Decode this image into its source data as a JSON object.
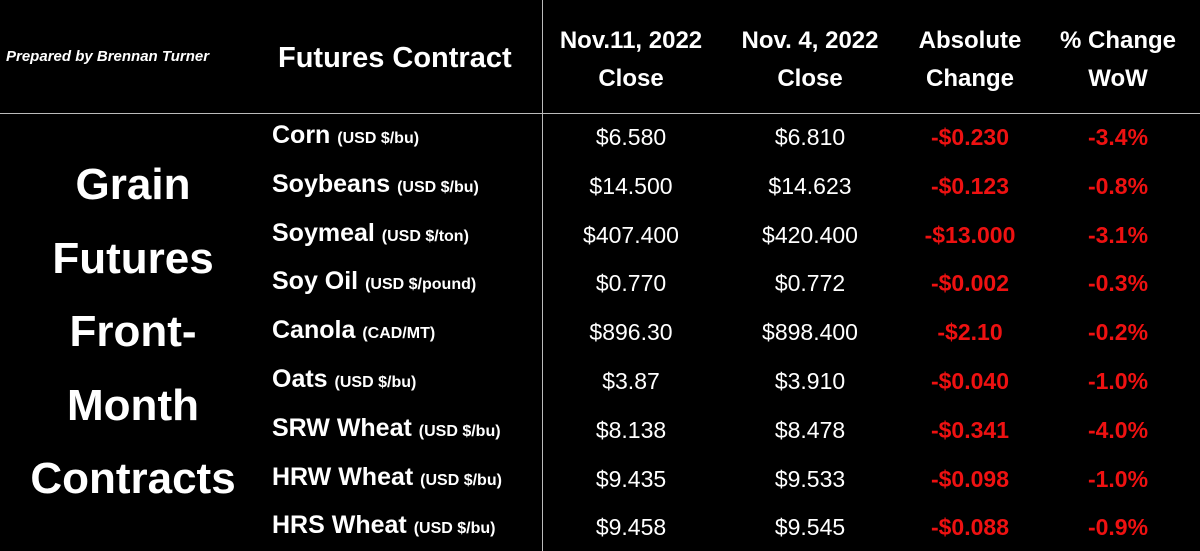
{
  "header": {
    "prepared_by": "Prepared by Brennan Turner",
    "columns": [
      "Futures Contract",
      [
        "Nov.11, 2022",
        "Close"
      ],
      [
        "Nov. 4, 2022",
        "Close"
      ],
      [
        "Absolute",
        "Change"
      ],
      [
        "% Change",
        "WoW"
      ]
    ]
  },
  "side_label": [
    "Grain",
    "Futures",
    "Front-",
    "Month",
    "Contracts"
  ],
  "table": {
    "rows": [
      [
        "Corn",
        "(USD $/bu)",
        "$6.580",
        "$6.810",
        "-$0.230",
        "-3.4%"
      ],
      [
        "Soybeans",
        "(USD $/bu)",
        "$14.500",
        "$14.623",
        "-$0.123",
        "-0.8%"
      ],
      [
        "Soymeal",
        "(USD $/ton)",
        "$407.400",
        "$420.400",
        "-$13.000",
        "-3.1%"
      ],
      [
        "Soy Oil",
        "(USD $/pound)",
        "$0.770",
        "$0.772",
        "-$0.002",
        "-0.3%"
      ],
      [
        "Canola",
        "(CAD/MT)",
        "$896.30",
        "$898.400",
        "-$2.10",
        "-0.2%"
      ],
      [
        "Oats",
        "(USD $/bu)",
        "$3.87",
        "$3.910",
        "-$0.040",
        "-1.0%"
      ],
      [
        "SRW Wheat",
        "(USD $/bu)",
        "$8.138",
        "$8.478",
        "-$0.341",
        "-4.0%"
      ],
      [
        "HRW Wheat",
        "(USD $/bu)",
        "$9.435",
        "$9.533",
        "-$0.098",
        "-1.0%"
      ],
      [
        "HRS Wheat",
        "(USD $/bu)",
        "$9.458",
        "$9.545",
        "-$0.088",
        "-0.9%"
      ]
    ]
  }
}
